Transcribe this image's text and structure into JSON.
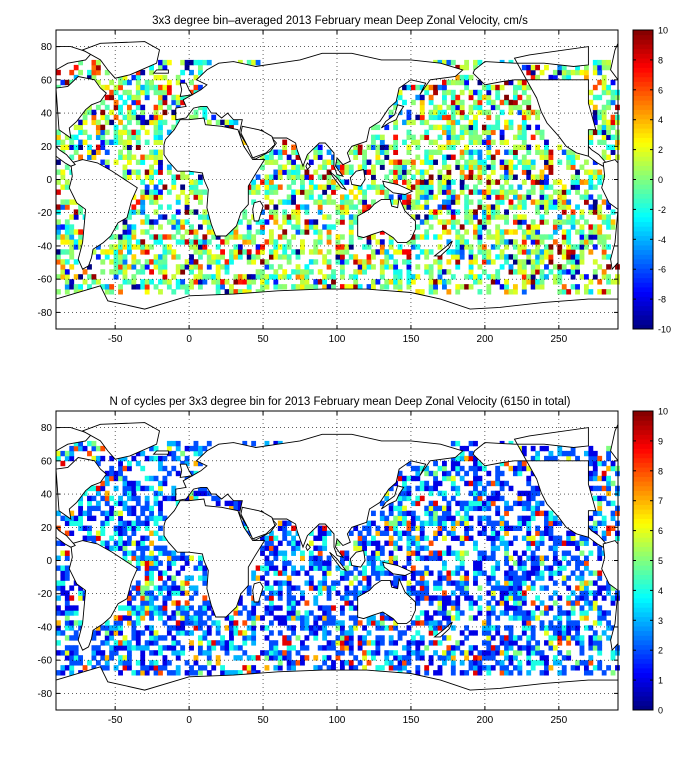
{
  "chart_data": [
    {
      "type": "heatmap",
      "title": "3x3 degree bin–averaged 2013 February mean Deep Zonal Velocity, cm/s",
      "xlabel": "",
      "ylabel": "",
      "xlim": [
        -90,
        290
      ],
      "ylim": [
        -90,
        90
      ],
      "x_ticks": [
        -50,
        0,
        50,
        100,
        150,
        200,
        250
      ],
      "y_ticks": [
        -80,
        -60,
        -40,
        -20,
        0,
        20,
        40,
        60,
        80
      ],
      "grid": true,
      "colormap": "jet",
      "colorbar": {
        "min": -10,
        "max": 10,
        "ticks": [
          -10,
          -8,
          -6,
          -4,
          -2,
          0,
          2,
          4,
          6,
          8,
          10
        ],
        "placement": "right"
      },
      "bin_size_deg": 3
    },
    {
      "type": "heatmap",
      "title": "N of cycles per 3x3 degree bin for 2013 February mean Deep Zonal Velocity (6150 in total)",
      "xlabel": "",
      "ylabel": "",
      "xlim": [
        -90,
        290
      ],
      "ylim": [
        -90,
        90
      ],
      "x_ticks": [
        -50,
        0,
        50,
        100,
        150,
        200,
        250
      ],
      "y_ticks": [
        -80,
        -60,
        -40,
        -20,
        0,
        20,
        40,
        60,
        80
      ],
      "grid": true,
      "colormap": "jet",
      "colorbar": {
        "min": 0,
        "max": 10,
        "ticks": [
          0,
          1,
          2,
          3,
          4,
          5,
          6,
          7,
          8,
          9,
          10
        ],
        "placement": "right"
      },
      "bin_size_deg": 3
    }
  ]
}
